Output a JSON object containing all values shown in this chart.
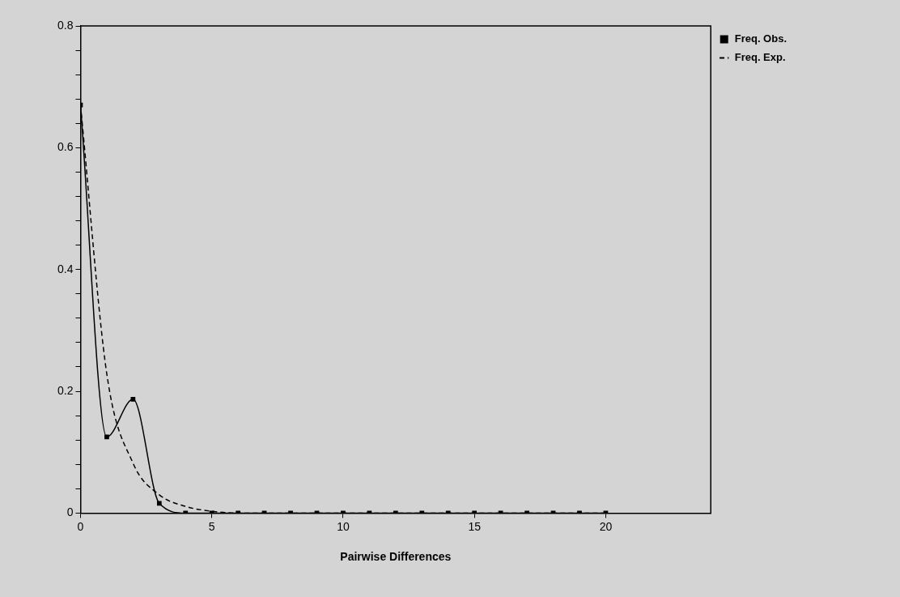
{
  "chart_data": {
    "type": "line",
    "xlabel": "Pairwise Differences",
    "x": [
      0,
      1,
      2,
      3,
      4,
      5,
      6,
      7,
      8,
      9,
      10,
      11,
      12,
      13,
      14,
      15,
      16,
      17,
      18,
      19,
      20
    ],
    "series": [
      {
        "name": "Freq. Obs.",
        "color": "#000000",
        "marker": "square",
        "line_style": "solid",
        "values": [
          0.67,
          0.125,
          0.187,
          0.016,
          0,
          0,
          0,
          0,
          0,
          0,
          0,
          0,
          0,
          0,
          0,
          0,
          0,
          0,
          0,
          0,
          0
        ]
      },
      {
        "name": "Freq. Exp.",
        "color": "#000000",
        "marker": "none",
        "line_style": "dashed",
        "values": [
          0.67,
          0.229,
          0.082,
          0.03,
          0.011,
          0.003,
          0,
          0,
          0,
          0,
          0,
          0,
          0,
          0,
          0,
          0,
          0,
          0,
          0,
          0,
          0
        ]
      }
    ],
    "xlim": [
      0,
      24
    ],
    "xticks": [
      0,
      5,
      10,
      15,
      20
    ],
    "ylim": [
      0,
      0.8
    ],
    "yticks": [
      0,
      {
        "value": 0.04,
        "label": null
      },
      {
        "value": 0.08,
        "label": null
      },
      {
        "value": 0.12,
        "label": null
      },
      {
        "value": 0.16,
        "label": null
      },
      {
        "value": 0.2,
        "label": "0.2"
      },
      {
        "value": 0.24,
        "label": null
      },
      {
        "value": 0.28,
        "label": null
      },
      {
        "value": 0.32,
        "label": null
      },
      {
        "value": 0.36,
        "label": null
      },
      {
        "value": 0.4,
        "label": "0.4"
      },
      {
        "value": 0.44,
        "label": null
      },
      {
        "value": 0.48,
        "label": null
      },
      {
        "value": 0.52,
        "label": null
      },
      {
        "value": 0.56,
        "label": null
      },
      {
        "value": 0.6,
        "label": "0.6"
      },
      {
        "value": 0.64,
        "label": null
      },
      {
        "value": 0.68,
        "label": null
      },
      {
        "value": 0.72,
        "label": null
      },
      {
        "value": 0.76,
        "label": null
      },
      {
        "value": 0.8,
        "label": "0.8"
      }
    ],
    "grid": false,
    "legend": "top right"
  }
}
